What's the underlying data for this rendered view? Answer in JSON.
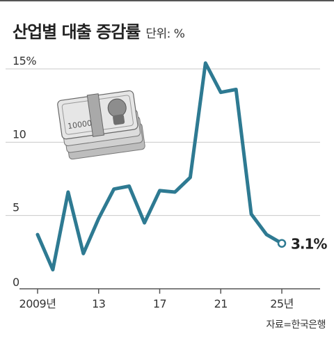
{
  "header": {
    "title": "산업별 대출 증감률",
    "unit": "단위: %"
  },
  "source": "자료=한국은행",
  "colors": {
    "line": "#2e7a92",
    "grid": "#c8c8c8",
    "axis": "#555555",
    "text": "#222222"
  },
  "chart_data": {
    "type": "line",
    "title": "산업별 대출 증감률",
    "xlabel": "",
    "ylabel": "",
    "ylim": [
      0,
      15
    ],
    "yticks": [
      0,
      5,
      10,
      15
    ],
    "ytick_labels": [
      "0",
      "5",
      "10",
      "15%"
    ],
    "xlim": [
      2009,
      2026
    ],
    "xticks": [
      2009,
      2013,
      2017,
      2021,
      2025
    ],
    "xtick_labels": [
      "2009년",
      "13",
      "17",
      "21",
      "25년"
    ],
    "grid": true,
    "series": [
      {
        "x": [
          2009,
          2010,
          2011,
          2012,
          2013,
          2014,
          2015,
          2016,
          2017,
          2018,
          2019,
          2020,
          2021,
          2022,
          2023,
          2024,
          2025
        ],
        "values": [
          3.7,
          1.3,
          6.6,
          2.4,
          4.8,
          6.8,
          7.0,
          4.5,
          6.7,
          6.6,
          7.6,
          15.4,
          13.4,
          13.6,
          5.1,
          3.7,
          3.1
        ]
      }
    ],
    "annotations": [
      {
        "x": 2025,
        "y": 3.1,
        "text": "3.1%"
      }
    ],
    "illustration": "banknote-bundle-icon"
  }
}
